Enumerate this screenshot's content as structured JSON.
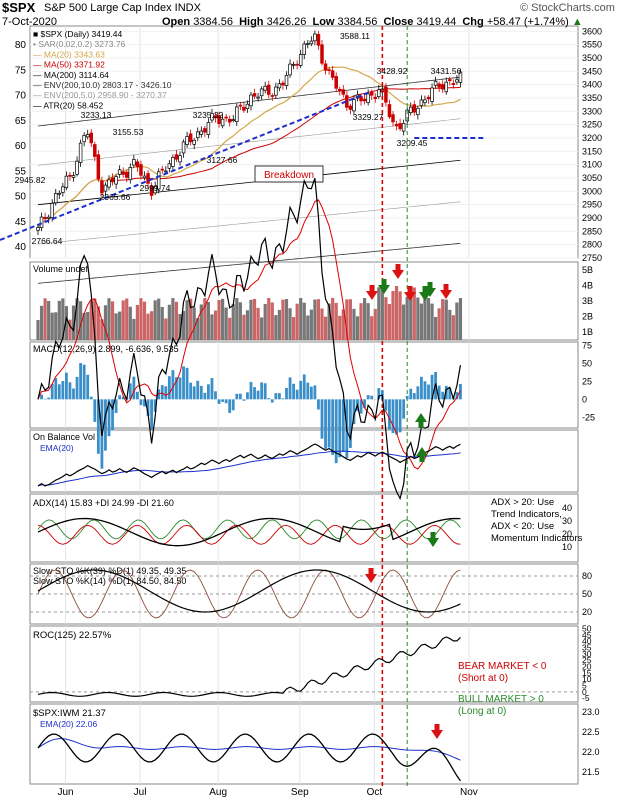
{
  "header": {
    "symbol": "$SPX",
    "name": "S&P 500 Large Cap Index  INDX",
    "date": "7-Oct-2020",
    "open_label": "Open",
    "open": "3384.56",
    "high_label": "High",
    "high": "3426.26",
    "low_label": "Low",
    "low": "3384.56",
    "close_label": "Close",
    "close": "3419.44",
    "chg_label": "Chg",
    "chg": "+58.47 (+1.74%)",
    "chg_arrow": "▲",
    "watermark": "© StockCharts.com"
  },
  "colors": {
    "up_candle": "#000000",
    "down_candle": "#cc0000",
    "ma20": "#d4a84a",
    "ma50": "#cc0000",
    "ma200": "#000000",
    "env10": "#333333",
    "env5": "#999999",
    "trendline": "#1c2fcc",
    "vol_up": "#777777",
    "vol_down": "#cc6666",
    "macd_line": "#000000",
    "macd_signal": "#dd0000",
    "macd_hist": "#3b8fc9",
    "green_arrow": "#1a7a1a",
    "red_arrow": "#dd1111",
    "vline_red": "#dd0000",
    "vline_green": "#2a8a2a"
  },
  "x_labels": [
    "Jun",
    "Jul",
    "Aug",
    "Sep",
    "Oct",
    "Nov"
  ],
  "panels": {
    "price": {
      "legend": [
        "■ $SPX (Daily) 3419.44",
        "• SAR(0.02,0.2) 3273.76",
        "— MA(20) 3343.63",
        "— MA(50) 3371.92",
        "— MA(200) 3114.64",
        "— ENV(200,10.0) 2803.17 - 3426.10",
        "— ENV(200,5.0) 2958.90 - 3270.37",
        "— ATR(20) 58.452"
      ],
      "legend_colors": [
        "#000",
        "#888",
        "#d4a84a",
        "#cc0000",
        "#000",
        "#333",
        "#999",
        "#000"
      ],
      "right_axis": [
        "3600",
        "3550",
        "3500",
        "3450",
        "3400",
        "3350",
        "3300",
        "3250",
        "3200",
        "3150",
        "3100",
        "3050",
        "3000",
        "2950",
        "2900",
        "2850",
        "2800",
        "2750"
      ],
      "left_axis": [
        "80",
        "75",
        "70",
        "65",
        "60",
        "55",
        "50",
        "45",
        "40"
      ],
      "annotations": [
        "3588.11",
        "3428.92",
        "3431.56",
        "3329.27",
        "3209.45",
        "3235.32",
        "3233.13",
        "3155.53",
        "3127.66",
        "2999.74",
        "2965.66",
        "2945.82",
        "2766.64",
        "Breakdown"
      ]
    },
    "volume": {
      "label": "Volume undef",
      "axis": [
        "5B",
        "4B",
        "3B",
        "2B",
        "1B"
      ]
    },
    "macd": {
      "label": "MACD(12,26,9) 2.899, -6.636, 9.535",
      "axis": [
        "75",
        "50",
        "25",
        "0",
        "-25"
      ]
    },
    "obv": {
      "label": "On Balance Vol",
      "ema_label": "EMA(20)"
    },
    "adx": {
      "label": "ADX(14) 15.83  +DI 24.99  -DI 21.60",
      "axis": [
        "40",
        "30",
        "20",
        "10"
      ],
      "note": [
        "ADX > 20: Use",
        "Trend Indicators,",
        "ADX < 20: Use",
        "Momentum Indicators"
      ]
    },
    "sto": {
      "label1": "Slow STO %K(39) %D(1) 49.35, 49.35",
      "label2": "Slow STO %K(14) %D(1) 84.50, 84.50",
      "axis": [
        "80",
        "50",
        "20"
      ]
    },
    "roc": {
      "label": "ROC(125) 22.57%",
      "axis": [
        "50",
        "45",
        "40",
        "35",
        "30",
        "25",
        "20",
        "15",
        "10",
        "5",
        "0",
        "-5"
      ],
      "bear": [
        "BEAR MARKET < 0",
        "(Short at 0)"
      ],
      "bull": [
        "BULL MARKET > 0",
        "(Long at 0)"
      ]
    },
    "ratio": {
      "label": "$SPX:IWM 21.37",
      "ema_label": "EMA(20) 22.06",
      "axis": [
        "23.0",
        "22.5",
        "22.0",
        "21.5"
      ]
    }
  },
  "chart_data": {
    "type": "line",
    "title": "$SPX S&P 500 Large Cap Index INDX",
    "ylim": [
      2750,
      3620
    ],
    "x": [
      "2020-05-14",
      "2020-05-20",
      "2020-06-01",
      "2020-06-08",
      "2020-06-11",
      "2020-06-15",
      "2020-06-19",
      "2020-06-26",
      "2020-06-30",
      "2020-07-08",
      "2020-07-15",
      "2020-07-22",
      "2020-07-31",
      "2020-08-07",
      "2020-08-14",
      "2020-08-21",
      "2020-08-28",
      "2020-09-02",
      "2020-09-04",
      "2020-09-08",
      "2020-09-11",
      "2020-09-16",
      "2020-09-23",
      "2020-09-25",
      "2020-09-30",
      "2020-10-05",
      "2020-10-07"
    ],
    "series": [
      {
        "name": "$SPX",
        "values": [
          2852,
          2972,
          3055,
          3232,
          3002,
          3066,
          3098,
          3009,
          3100,
          3170,
          3228,
          3276,
          3271,
          3351,
          3372,
          3397,
          3508,
          3580,
          3426,
          3331,
          3341,
          3385,
          3237,
          3298,
          3363,
          3408,
          3419
        ]
      }
    ],
    "annotations": {
      "peak": 3588.11,
      "low": 2766.64,
      "support": 3200
    }
  }
}
